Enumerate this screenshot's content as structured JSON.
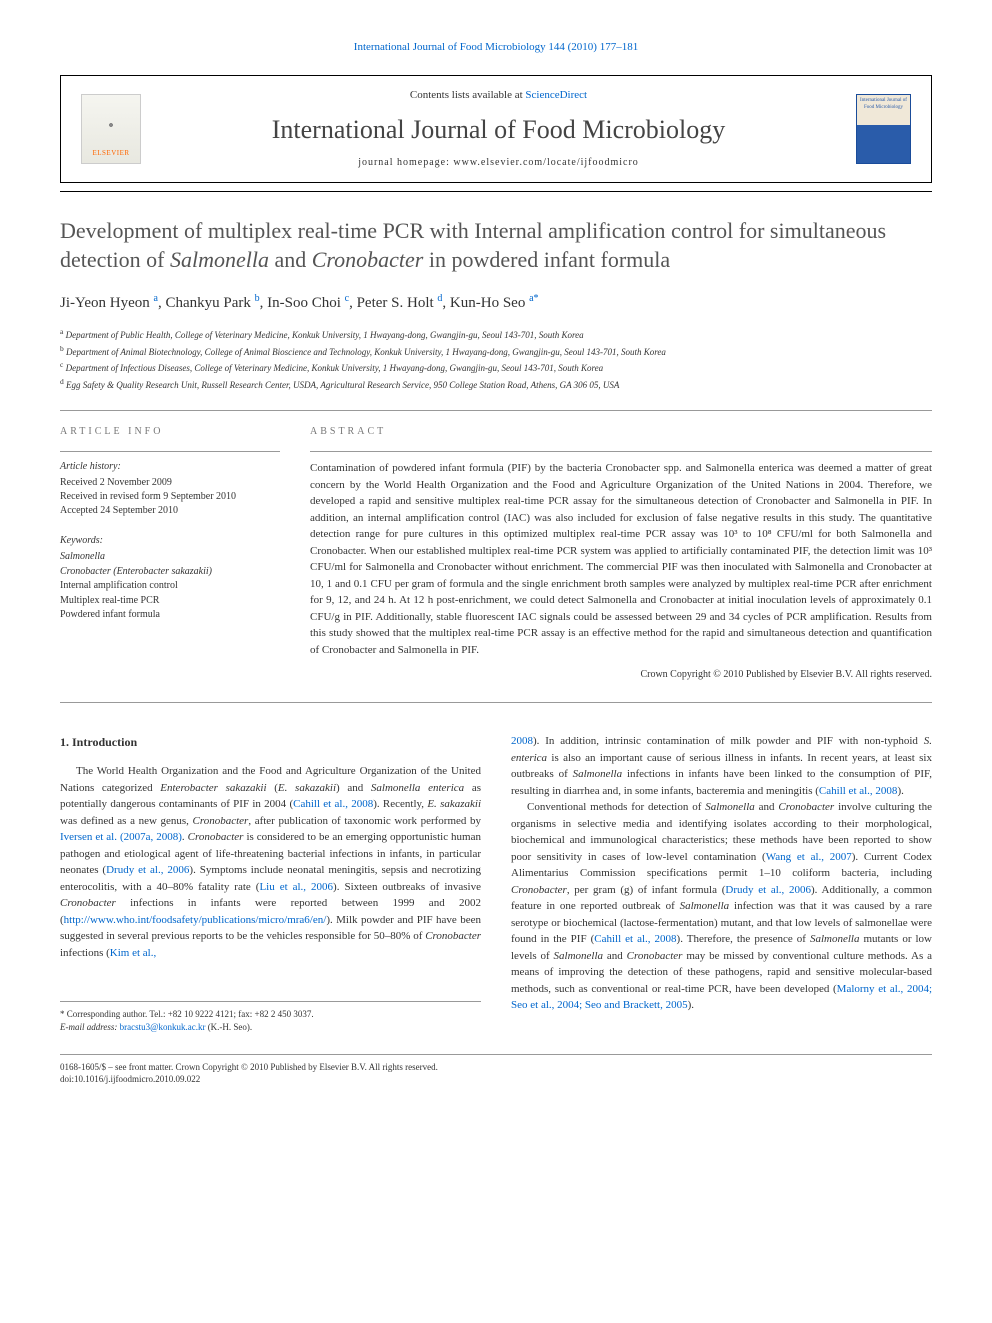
{
  "header": {
    "citation": "International Journal of Food Microbiology 144 (2010) 177–181",
    "contents_prefix": "Contents lists available at ",
    "contents_link": "ScienceDirect",
    "journal_name": "International Journal of Food Microbiology",
    "homepage_prefix": "journal homepage: ",
    "homepage_url": "www.elsevier.com/locate/ijfoodmicro",
    "publisher_label": "ELSEVIER",
    "cover_text": "International Journal of Food Microbiology"
  },
  "article": {
    "title_part1": "Development of multiplex real-time PCR with Internal amplification control for simultaneous detection of ",
    "title_italic1": "Salmonella",
    "title_part2": " and ",
    "title_italic2": "Cronobacter",
    "title_part3": " in powdered infant formula"
  },
  "authors": {
    "a1_name": "Ji-Yeon Hyeon",
    "a1_aff": "a",
    "a2_name": "Chankyu Park",
    "a2_aff": "b",
    "a3_name": "In-Soo Choi",
    "a3_aff": "c",
    "a4_name": "Peter S. Holt",
    "a4_aff": "d",
    "a5_name": "Kun-Ho Seo",
    "a5_aff": "a",
    "a5_star": "*"
  },
  "affiliations": {
    "a": "Department of Public Health, College of Veterinary Medicine, Konkuk University, 1 Hwayang-dong, Gwangjin-gu, Seoul 143-701, South Korea",
    "b": "Department of Animal Biotechnology, College of Animal Bioscience and Technology, Konkuk University, 1 Hwayang-dong, Gwangjin-gu, Seoul 143-701, South Korea",
    "c": "Department of Infectious Diseases, College of Veterinary Medicine, Konkuk University, 1 Hwayang-dong, Gwangjin-gu, Seoul 143-701, South Korea",
    "d": "Egg Safety & Quality Research Unit, Russell Research Center, USDA, Agricultural Research Service, 950 College Station Road, Athens, GA 306 05, USA"
  },
  "info": {
    "section_label": "ARTICLE INFO",
    "history_label": "Article history:",
    "received": "Received 2 November 2009",
    "revised": "Received in revised form 9 September 2010",
    "accepted": "Accepted 24 September 2010",
    "keywords_label": "Keywords:",
    "kw1": "Salmonella",
    "kw2": "Cronobacter (Enterobacter sakazakii)",
    "kw3": "Internal amplification control",
    "kw4": "Multiplex real-time PCR",
    "kw5": "Powdered infant formula"
  },
  "abstract": {
    "section_label": "ABSTRACT",
    "text": "Contamination of powdered infant formula (PIF) by the bacteria Cronobacter spp. and Salmonella enterica was deemed a matter of great concern by the World Health Organization and the Food and Agriculture Organization of the United Nations in 2004. Therefore, we developed a rapid and sensitive multiplex real-time PCR assay for the simultaneous detection of Cronobacter and Salmonella in PIF. In addition, an internal amplification control (IAC) was also included for exclusion of false negative results in this study. The quantitative detection range for pure cultures in this optimized multiplex real-time PCR assay was 10³ to 10⁸ CFU/ml for both Salmonella and Cronobacter. When our established multiplex real-time PCR system was applied to artificially contaminated PIF, the detection limit was 10³ CFU/ml for Salmonella and Cronobacter without enrichment. The commercial PIF was then inoculated with Salmonella and Cronobacter at 10, 1 and 0.1 CFU per gram of formula and the single enrichment broth samples were analyzed by multiplex real-time PCR after enrichment for 9, 12, and 24 h. At 12 h post-enrichment, we could detect Salmonella and Cronobacter at initial inoculation levels of approximately 0.1 CFU/g in PIF. Additionally, stable fluorescent IAC signals could be assessed between 29 and 34 cycles of PCR amplification. Results from this study showed that the multiplex real-time PCR assay is an effective method for the rapid and simultaneous detection and quantification of Cronobacter and Salmonella in PIF.",
    "copyright": "Crown Copyright © 2010 Published by Elsevier B.V. All rights reserved."
  },
  "body": {
    "intro_heading": "1. Introduction",
    "col1_html": "The World Health Organization and the Food and Agriculture Organization of the United Nations categorized <em>Enterobacter sakazakii</em> (<em>E. sakazakii</em>) and <em>Salmonella enterica</em> as potentially dangerous contaminants of PIF in 2004 (<span class='ref'>Cahill et al., 2008</span>). Recently, <em>E. sakazakii</em> was defined as a new genus, <em>Cronobacter</em>, after publication of taxonomic work performed by <span class='ref'>Iversen et al. (2007a, 2008)</span>. <em>Cronobacter</em> is considered to be an emerging opportunistic human pathogen and etiological agent of life-threatening bacterial infections in infants, in particular neonates (<span class='ref'>Drudy et al., 2006</span>). Symptoms include neonatal meningitis, sepsis and necrotizing enterocolitis, with a 40–80% fatality rate (<span class='ref'>Liu et al., 2006</span>). Sixteen outbreaks of invasive <em>Cronobacter</em> infections in infants were reported between 1999 and 2002 (<span class='ref'>http://www.who.int/foodsafety/publications/micro/mra6/en/</span>). Milk powder and PIF have been suggested in several previous reports to be the vehicles responsible for 50–80% of <em>Cronobacter</em> infections (<span class='ref'>Kim et al.,</span>",
    "col2a_html": "<span class='ref'>2008</span>). In addition, intrinsic contamination of milk powder and PIF with non-typhoid <em>S. enterica</em> is also an important cause of serious illness in infants. In recent years, at least six outbreaks of <em>Salmonella</em> infections in infants have been linked to the consumption of PIF, resulting in diarrhea and, in some infants, bacteremia and meningitis (<span class='ref'>Cahill et al., 2008</span>).",
    "col2b_html": "Conventional methods for detection of <em>Salmonella</em> and <em>Cronobacter</em> involve culturing the organisms in selective media and identifying isolates according to their morphological, biochemical and immunological characteristics; these methods have been reported to show poor sensitivity in cases of low-level contamination (<span class='ref'>Wang et al., 2007</span>). Current Codex Alimentarius Commission specifications permit 1–10 coliform bacteria, including <em>Cronobacter</em>, per gram (g) of infant formula (<span class='ref'>Drudy et al., 2006</span>). Additionally, a common feature in one reported outbreak of <em>Salmonella</em> infection was that it was caused by a rare serotype or biochemical (lactose-fermentation) mutant, and that low levels of salmonellae were found in the PIF (<span class='ref'>Cahill et al., 2008</span>). Therefore, the presence of <em>Salmonella</em> mutants or low levels of <em>Salmonella</em> and <em>Cronobacter</em> may be missed by conventional culture methods. As a means of improving the detection of these pathogens, rapid and sensitive molecular-based methods, such as conventional or real-time PCR, have been developed (<span class='ref'>Malorny et al., 2004; Seo et al., 2004; Seo and Brackett, 2005</span>)."
  },
  "footnotes": {
    "corr_label": "* Corresponding author. Tel.: +82 10 9222 4121; fax: +82 2 450 3037.",
    "email_label": "E-mail address:",
    "email": "bracstu3@konkuk.ac.kr",
    "email_name": "(K.-H. Seo)."
  },
  "bottom": {
    "issn": "0168-1605/$ – see front matter. Crown Copyright © 2010 Published by Elsevier B.V. All rights reserved.",
    "doi": "doi:10.1016/j.ijfoodmicro.2010.09.022"
  },
  "colors": {
    "link": "#0066cc",
    "text": "#333333",
    "light_text": "#777777",
    "rule": "#999999",
    "elsevier_orange": "#ff6600",
    "cover_blue": "#2a5caa"
  },
  "typography": {
    "body_fontsize": 11,
    "title_fontsize": 22,
    "journal_fontsize": 26,
    "author_fontsize": 15,
    "affil_fontsize": 9,
    "footnote_fontsize": 9
  }
}
